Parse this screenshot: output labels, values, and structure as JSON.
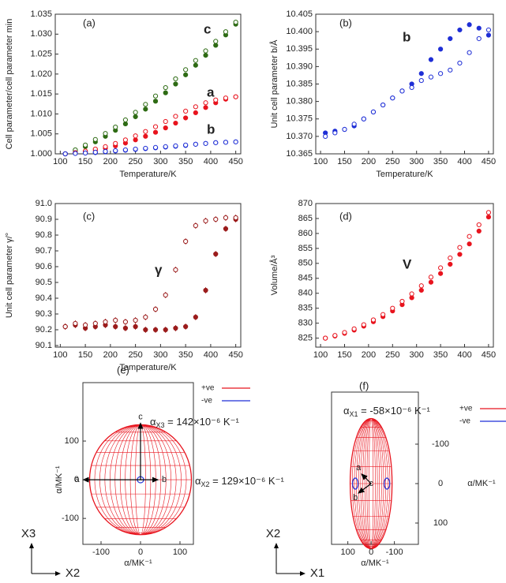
{
  "chart_data": [
    {
      "type": "scatter",
      "panel": "(a)",
      "ylabel": "Cell parameter/cell parameter min",
      "xlabel": "Temperature/K",
      "x": [
        110,
        130,
        150,
        170,
        190,
        210,
        230,
        250,
        270,
        290,
        310,
        330,
        350,
        370,
        390,
        410,
        430,
        450
      ],
      "xlim": [
        90,
        460
      ],
      "xticks": [
        100,
        150,
        200,
        250,
        300,
        350,
        400,
        450
      ],
      "ylim": [
        1.0,
        1.035
      ],
      "yticks": [
        {
          "value": 1.0,
          "label": "1.000"
        },
        1.005,
        {
          "value": 1.01,
          "label": "1.010"
        },
        1.015,
        {
          "value": 1.02,
          "label": "1.020"
        },
        1.025,
        {
          "value": 1.03,
          "label": "1.030"
        },
        1.035
      ],
      "series": [
        {
          "name": "c",
          "color": "#2e6b14",
          "marker": "filled",
          "values": [
            1.0,
            1.0008,
            1.0018,
            1.003,
            1.0044,
            1.0059,
            1.0075,
            1.0093,
            1.0112,
            1.0132,
            1.0153,
            1.0175,
            1.0198,
            1.0222,
            1.0247,
            1.0272,
            1.0298,
            1.0325
          ]
        },
        {
          "color": "#2e6b14",
          "marker": "open",
          "values": [
            1.0,
            1.001,
            1.0022,
            1.0036,
            1.0051,
            1.0067,
            1.0085,
            1.0104,
            1.0124,
            1.0145,
            1.0166,
            1.0188,
            1.0211,
            1.0234,
            1.0258,
            1.0282,
            1.0306,
            1.033
          ]
        },
        {
          "name": "a",
          "color": "#e8141e",
          "marker": "filled",
          "values": [
            1.0,
            1.0002,
            1.0005,
            1.0009,
            1.0014,
            1.002,
            1.0027,
            1.0035,
            1.0044,
            1.0054,
            1.0065,
            1.0077,
            1.009,
            1.0103,
            1.0116,
            1.0128,
            1.0137,
            1.0143
          ]
        },
        {
          "color": "#e8141e",
          "marker": "open",
          "values": [
            1.0,
            1.0003,
            1.0007,
            1.0012,
            1.0018,
            1.0026,
            1.0035,
            1.0045,
            1.0056,
            1.0068,
            1.0081,
            1.0094,
            1.0107,
            1.0118,
            1.0128,
            1.0135,
            1.014,
            1.0143
          ]
        },
        {
          "name": "b",
          "color": "#1f2fd6",
          "marker": "filled",
          "values": [
            1.0,
            1.0001,
            1.0002,
            1.0003,
            1.0005,
            1.0007,
            1.0009,
            1.0011,
            1.0013,
            1.0015,
            1.0017,
            1.0019,
            1.0021,
            1.0024,
            1.0026,
            1.0028,
            1.0029,
            1.003
          ]
        },
        {
          "color": "#1f2fd6",
          "marker": "open",
          "values": [
            1.0,
            1.0001,
            1.0002,
            1.0004,
            1.0006,
            1.0008,
            1.001,
            1.0012,
            1.0014,
            1.0016,
            1.0018,
            1.002,
            1.0022,
            1.0024,
            1.0026,
            1.0028,
            1.0029,
            1.003
          ]
        }
      ]
    },
    {
      "type": "scatter",
      "panel": "(b)",
      "ylabel": "Unit cell parameter b/Å",
      "xlabel": "Temperature/K",
      "x": [
        110,
        130,
        150,
        170,
        190,
        210,
        230,
        250,
        270,
        290,
        310,
        330,
        350,
        370,
        390,
        410,
        430,
        450
      ],
      "xlim": [
        90,
        460
      ],
      "xticks": [
        100,
        150,
        200,
        250,
        300,
        350,
        400,
        450
      ],
      "ylim": [
        10.365,
        10.405
      ],
      "yticks": [
        10.365,
        {
          "value": 10.37,
          "label": "10.370"
        },
        10.375,
        {
          "value": 10.38,
          "label": "10.380"
        },
        10.385,
        {
          "value": 10.39,
          "label": "10.390"
        },
        10.395,
        {
          "value": 10.4,
          "label": "10.400"
        },
        10.405
      ],
      "series": [
        {
          "name": "b",
          "color": "#1f2fd6",
          "marker": "filled",
          "values": [
            10.371,
            10.3715,
            10.372,
            10.373,
            10.375,
            10.377,
            10.379,
            10.381,
            10.383,
            10.385,
            10.388,
            10.392,
            10.395,
            10.398,
            10.4005,
            10.402,
            10.401,
            10.399
          ]
        },
        {
          "color": "#1f2fd6",
          "marker": "open",
          "values": [
            10.37,
            10.371,
            10.372,
            10.3735,
            10.375,
            10.377,
            10.379,
            10.381,
            10.383,
            10.384,
            10.386,
            10.387,
            10.388,
            10.389,
            10.391,
            10.394,
            10.398,
            10.4005
          ]
        }
      ]
    },
    {
      "type": "scatter",
      "panel": "(c)",
      "ylabel": "Unit cell parameter γ/°",
      "xlabel": "Temperature/K",
      "x": [
        110,
        130,
        150,
        170,
        190,
        210,
        230,
        250,
        270,
        290,
        310,
        330,
        350,
        370,
        390,
        410,
        430,
        450
      ],
      "xlim": [
        90,
        460
      ],
      "xticks": [
        100,
        150,
        200,
        250,
        300,
        350,
        400,
        450
      ],
      "ylim": [
        90.09,
        91.0
      ],
      "yticks": [
        90.1,
        90.2,
        90.3,
        90.4,
        90.5,
        90.6,
        90.7,
        90.8,
        90.9,
        {
          "value": 91.0,
          "label": "91.0"
        }
      ],
      "series": [
        {
          "color": "#9b1c1c",
          "marker": "filled",
          "error": 0.02,
          "values": [
            90.22,
            90.23,
            90.21,
            90.22,
            90.23,
            90.22,
            90.21,
            90.22,
            90.2,
            90.2,
            90.2,
            90.21,
            90.22,
            90.28,
            90.45,
            90.68,
            90.84,
            90.9
          ]
        },
        {
          "name": "γ",
          "color": "#9b1c1c",
          "marker": "open",
          "error": 0.02,
          "values": [
            90.22,
            90.24,
            90.23,
            90.24,
            90.25,
            90.26,
            90.25,
            90.26,
            90.28,
            90.33,
            90.42,
            90.58,
            90.76,
            90.86,
            90.89,
            90.9,
            90.91,
            90.91
          ]
        }
      ]
    },
    {
      "type": "scatter",
      "panel": "(d)",
      "ylabel": "Volume/Å³",
      "x": [
        110,
        130,
        150,
        170,
        190,
        210,
        230,
        250,
        270,
        290,
        310,
        330,
        350,
        370,
        390,
        410,
        430,
        450
      ],
      "xlim": [
        90,
        460
      ],
      "xticks": [
        100,
        150,
        200,
        250,
        300,
        350,
        400,
        450
      ],
      "ylim": [
        822,
        870
      ],
      "yticks": [
        825,
        830,
        835,
        840,
        845,
        850,
        855,
        860,
        865,
        870
      ],
      "series": [
        {
          "name": "V",
          "color": "#e8141e",
          "marker": "filled",
          "values": [
            825,
            825.7,
            826.6,
            827.7,
            829,
            830.5,
            832.2,
            834.1,
            836.2,
            838.5,
            841,
            843.7,
            846.6,
            849.7,
            853,
            856.5,
            860.8,
            865.5
          ]
        },
        {
          "color": "#e8141e",
          "marker": "open",
          "values": [
            825,
            825.9,
            826.9,
            828.1,
            829.5,
            831.1,
            832.9,
            835,
            837.3,
            839.8,
            842.5,
            845.4,
            848.5,
            851.8,
            855.3,
            859,
            862.9,
            867
          ]
        }
      ]
    },
    {
      "type": "indicatrix",
      "panel": "(e)",
      "xlabel": "α/MK⁻¹",
      "ylabel": "α/MK⁻¹",
      "xlim": [
        -146,
        134
      ],
      "ylim": [
        -167,
        251
      ],
      "xticks": [
        -100,
        0,
        100
      ],
      "yticks": [
        -100,
        0,
        100
      ],
      "positive_semi_axes": [
        129,
        142
      ],
      "negative_semi_axes": [
        8,
        8
      ],
      "crystal_axes": [
        "a",
        "b",
        "c"
      ],
      "frame_axes": [
        "X3",
        "X2"
      ],
      "legend": [
        {
          "name": "+ve",
          "color": "#e8141e"
        },
        {
          "name": "-ve",
          "color": "#1f2fd6"
        }
      ],
      "annotations": [
        {
          "symbol": "α",
          "subscript": "X3",
          "text": " = 142×10⁻⁶ K⁻¹",
          "color": "#e8141e"
        },
        {
          "symbol": "α",
          "subscript": "X2",
          "text": " = 129×10⁻⁶ K⁻¹",
          "color": "#e8141e"
        }
      ]
    },
    {
      "type": "indicatrix",
      "panel": "(f)",
      "xlabel": "α/MK⁻¹",
      "ylabel": "α/MK⁻¹",
      "xlim": [
        170,
        -203
      ],
      "ylim": [
        154,
        -232
      ],
      "xticks": [
        100,
        0,
        -100
      ],
      "yticks": [
        -100,
        0,
        100
      ],
      "positive_semi_axes": [
        90,
        165
      ],
      "negative_semi_axes": [
        80,
        14
      ],
      "crystal_axes": [
        "a",
        "b",
        "c"
      ],
      "frame_axes": [
        "X2",
        "X1"
      ],
      "legend": [
        {
          "name": "+ve",
          "color": "#e8141e"
        },
        {
          "name": "-ve",
          "color": "#1f2fd6"
        }
      ],
      "annotations": [
        {
          "symbol": "α",
          "subscript": "X1",
          "text": " = -58×10⁻⁶ K⁻¹",
          "color": "#1f2fd6"
        }
      ]
    }
  ]
}
